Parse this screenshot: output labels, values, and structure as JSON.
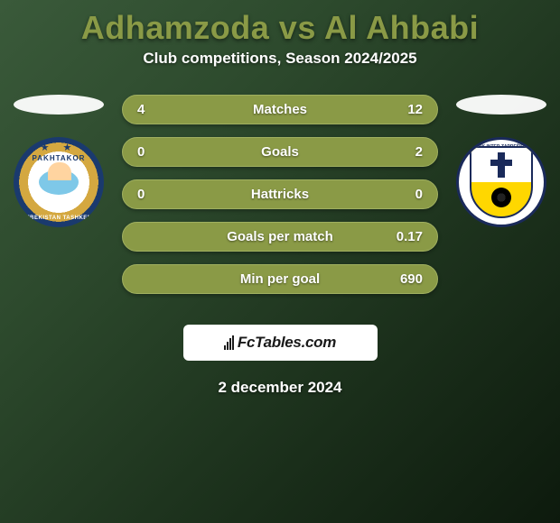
{
  "header": {
    "title": "Adhamzoda vs Al Ahbabi",
    "subtitle": "Club competitions, Season 2024/2025"
  },
  "stats": {
    "rows": [
      {
        "left": "4",
        "label": "Matches",
        "right": "12"
      },
      {
        "left": "0",
        "label": "Goals",
        "right": "2"
      },
      {
        "left": "0",
        "label": "Hattricks",
        "right": "0"
      },
      {
        "left": "",
        "label": "Goals per match",
        "right": "0.17"
      },
      {
        "left": "",
        "label": "Min per goal",
        "right": "690"
      }
    ],
    "bar_color": "#8a9a46",
    "bar_border": "#a0b060",
    "text_color": "#ffffff"
  },
  "logos": {
    "left": {
      "name": "PAKHTAKOR",
      "sub": "UZBEKISTAN TASHKENT"
    },
    "right": {
      "name": "NK INTER ZAPREŠIĆ"
    }
  },
  "branding": {
    "text": "FcTables.com"
  },
  "footer": {
    "date": "2 december 2024"
  },
  "theme": {
    "title_color": "#8a9a46",
    "background": "linear-gradient(135deg, #3a5a3a, #0d1a0d)"
  }
}
